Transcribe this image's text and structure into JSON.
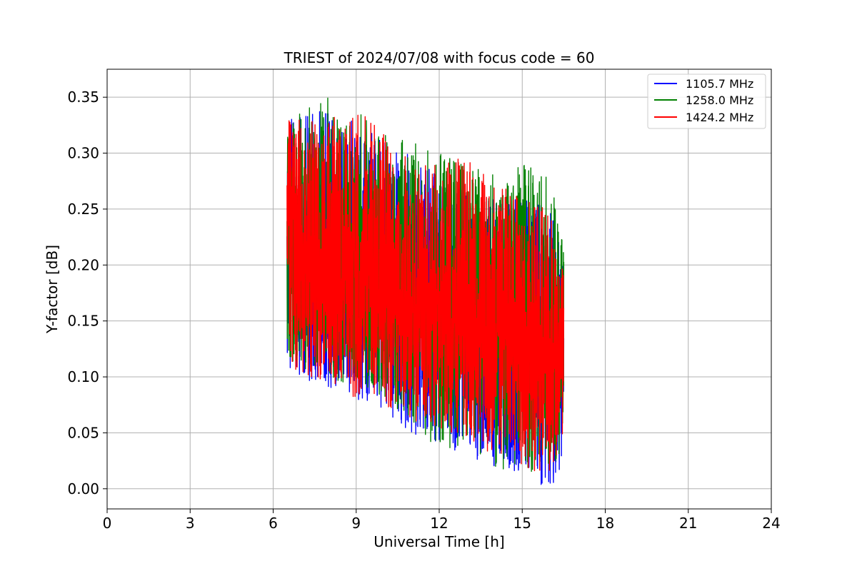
{
  "chart_data": {
    "type": "line",
    "title": "TRIEST of 2024/07/08 with focus code = 60",
    "xlabel": "Universal Time [h]",
    "ylabel": "Y-factor [dB]",
    "xlim": [
      0,
      24
    ],
    "ylim": [
      -0.018,
      0.375
    ],
    "xticks": [
      0,
      3,
      6,
      9,
      12,
      15,
      18,
      21,
      24
    ],
    "yticks": [
      0.0,
      0.05,
      0.1,
      0.15,
      0.2,
      0.25,
      0.3,
      0.35
    ],
    "ytick_labels": [
      "0.00",
      "0.05",
      "0.10",
      "0.15",
      "0.20",
      "0.25",
      "0.30",
      "0.35"
    ],
    "grid": true,
    "legend_position": "top-right",
    "time_range": [
      6.5,
      16.5
    ],
    "series": [
      {
        "name": "1105.7 MHz",
        "color": "#0000ff",
        "envelope_x": [
          6.5,
          8,
          9,
          10,
          11,
          12,
          13,
          14,
          15,
          16,
          16.5
        ],
        "envelope_high": [
          0.33,
          0.34,
          0.33,
          0.31,
          0.3,
          0.28,
          0.27,
          0.26,
          0.26,
          0.25,
          0.21
        ],
        "envelope_low": [
          0.1,
          0.09,
          0.08,
          0.07,
          0.05,
          0.04,
          0.03,
          0.02,
          0.01,
          0.0,
          0.02
        ],
        "mean_start": 0.205,
        "mean_end": 0.12,
        "seed": 11
      },
      {
        "name": "1258.0 MHz",
        "color": "#008000",
        "envelope_x": [
          6.5,
          8,
          9,
          10,
          11,
          12,
          13,
          14,
          15,
          16,
          16.5
        ],
        "envelope_high": [
          0.33,
          0.35,
          0.34,
          0.32,
          0.31,
          0.3,
          0.29,
          0.28,
          0.29,
          0.28,
          0.22
        ],
        "envelope_low": [
          0.11,
          0.1,
          0.09,
          0.08,
          0.06,
          0.03,
          0.04,
          0.02,
          0.01,
          0.02,
          0.03
        ],
        "mean_start": 0.21,
        "mean_end": 0.13,
        "seed": 23
      },
      {
        "name": "1424.2 MHz",
        "color": "#ff0000",
        "envelope_x": [
          6.5,
          8,
          9,
          10,
          11,
          12,
          13,
          14,
          15,
          16,
          16.5
        ],
        "envelope_high": [
          0.33,
          0.33,
          0.34,
          0.32,
          0.3,
          0.29,
          0.3,
          0.28,
          0.26,
          0.25,
          0.19
        ],
        "envelope_low": [
          0.11,
          0.09,
          0.08,
          0.07,
          0.06,
          0.05,
          0.04,
          0.03,
          0.02,
          0.01,
          0.05
        ],
        "mean_start": 0.205,
        "mean_end": 0.115,
        "seed": 37
      }
    ]
  }
}
